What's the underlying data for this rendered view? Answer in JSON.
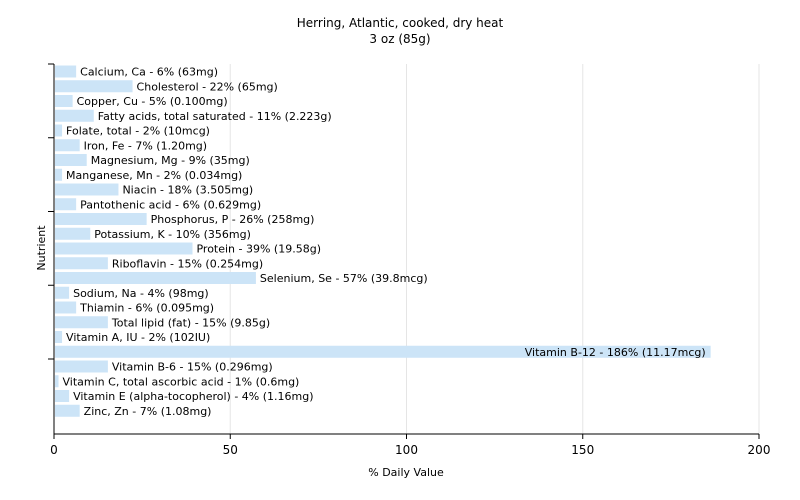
{
  "chart_data": {
    "type": "bar",
    "orientation": "horizontal",
    "title": "Herring, Atlantic, cooked, dry heat",
    "subtitle": "3 oz (85g)",
    "xlabel": "% Daily Value",
    "ylabel": "Nutrient",
    "xlim": [
      0,
      200
    ],
    "xticks": [
      0,
      50,
      100,
      150,
      200
    ],
    "bar_color": "#cce4f7",
    "axis_color": "#000000",
    "grid_color": "#e5e5e5",
    "grid": true,
    "bars": [
      {
        "name": "Calcium, Ca",
        "value": 6,
        "label": "Calcium, Ca - 6% (63mg)"
      },
      {
        "name": "Cholesterol",
        "value": 22,
        "label": "Cholesterol - 22% (65mg)"
      },
      {
        "name": "Copper, Cu",
        "value": 5,
        "label": "Copper, Cu - 5% (0.100mg)"
      },
      {
        "name": "Fatty acids, total saturated",
        "value": 11,
        "label": "Fatty acids, total saturated - 11% (2.223g)"
      },
      {
        "name": "Folate, total",
        "value": 2,
        "label": "Folate, total - 2% (10mcg)"
      },
      {
        "name": "Iron, Fe",
        "value": 7,
        "label": "Iron, Fe - 7% (1.20mg)"
      },
      {
        "name": "Magnesium, Mg",
        "value": 9,
        "label": "Magnesium, Mg - 9% (35mg)"
      },
      {
        "name": "Manganese, Mn",
        "value": 2,
        "label": "Manganese, Mn - 2% (0.034mg)"
      },
      {
        "name": "Niacin",
        "value": 18,
        "label": "Niacin - 18% (3.505mg)"
      },
      {
        "name": "Pantothenic acid",
        "value": 6,
        "label": "Pantothenic acid - 6% (0.629mg)"
      },
      {
        "name": "Phosphorus, P",
        "value": 26,
        "label": "Phosphorus, P - 26% (258mg)"
      },
      {
        "name": "Potassium, K",
        "value": 10,
        "label": "Potassium, K - 10% (356mg)"
      },
      {
        "name": "Protein",
        "value": 39,
        "label": "Protein - 39% (19.58g)"
      },
      {
        "name": "Riboflavin",
        "value": 15,
        "label": "Riboflavin - 15% (0.254mg)"
      },
      {
        "name": "Selenium, Se",
        "value": 57,
        "label": "Selenium, Se - 57% (39.8mcg)"
      },
      {
        "name": "Sodium, Na",
        "value": 4,
        "label": "Sodium, Na - 4% (98mg)"
      },
      {
        "name": "Thiamin",
        "value": 6,
        "label": "Thiamin - 6% (0.095mg)"
      },
      {
        "name": "Total lipid (fat)",
        "value": 15,
        "label": "Total lipid (fat) - 15% (9.85g)"
      },
      {
        "name": "Vitamin A, IU",
        "value": 2,
        "label": "Vitamin A, IU - 2% (102IU)"
      },
      {
        "name": "Vitamin B-12",
        "value": 186,
        "label": "Vitamin B-12 - 186% (11.17mcg)"
      },
      {
        "name": "Vitamin B-6",
        "value": 15,
        "label": "Vitamin B-6 - 15% (0.296mg)"
      },
      {
        "name": "Vitamin C, total ascorbic acid",
        "value": 1,
        "label": "Vitamin C, total ascorbic acid - 1% (0.6mg)"
      },
      {
        "name": "Vitamin E (alpha-tocopherol)",
        "value": 4,
        "label": "Vitamin E (alpha-tocopherol) - 4% (1.16mg)"
      },
      {
        "name": "Zinc, Zn",
        "value": 7,
        "label": "Zinc, Zn - 7% (1.08mg)"
      }
    ]
  }
}
